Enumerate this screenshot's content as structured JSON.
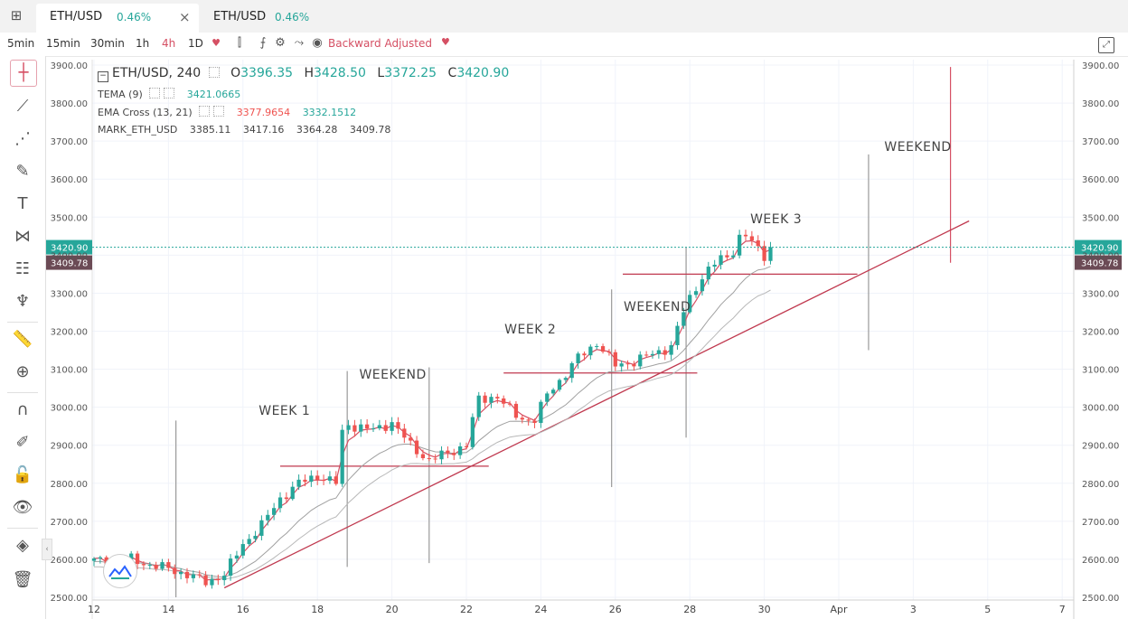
{
  "tabs": [
    {
      "symbol": "ETH/USD",
      "change": "0.46%",
      "close": "×"
    },
    {
      "symbol": "ETH/USD",
      "change": "0.46%"
    }
  ],
  "toolbar": {
    "timeframes": [
      "5min",
      "15min",
      "30min",
      "1h",
      "4h",
      "1D"
    ],
    "active_timeframe": "4h",
    "adjust_label": "Backward Adjusted"
  },
  "legend": {
    "symbol": "ETH/USD, 240",
    "open_label": "O",
    "open": "3396.35",
    "high_label": "H",
    "high": "3428.50",
    "low_label": "L",
    "low": "3372.25",
    "close_label": "C",
    "close": "3420.90",
    "tema_name": "TEMA (9)",
    "tema_value": "3421.0665",
    "ema_name": "EMA Cross (13, 21)",
    "ema_fast": "3377.9654",
    "ema_slow": "3332.1512",
    "mark_name": "MARK_ETH_USD",
    "mark_o": "3385.11",
    "mark_h": "3417.16",
    "mark_l": "3364.28",
    "mark_c": "3409.78"
  },
  "price_labels": {
    "last": "3420.90",
    "mark": "3409.78"
  },
  "colors": {
    "up": "#26a69a",
    "down": "#ef5350",
    "accent": "#d54f63"
  },
  "chart_data": {
    "type": "candlestick",
    "symbol": "ETH/USD",
    "interval": "240",
    "y_ticks": [
      "2500.00",
      "2600.00",
      "2700.00",
      "2800.00",
      "2900.00",
      "3000.00",
      "3100.00",
      "3200.00",
      "3300.00",
      "3400.00",
      "3500.00",
      "3600.00",
      "3700.00",
      "3800.00",
      "3900.00"
    ],
    "ylim": [
      2500,
      3900
    ],
    "x_ticks": [
      "12",
      "14",
      "16",
      "18",
      "20",
      "22",
      "24",
      "26",
      "28",
      "30",
      "Apr",
      "3",
      "5",
      "7"
    ],
    "x_tick_days": [
      12,
      14,
      16,
      18,
      20,
      22,
      24,
      26,
      28,
      30,
      32,
      34,
      36,
      38
    ],
    "xlim": [
      12,
      39
    ],
    "close_keypoints": [
      [
        12.0,
        2595
      ],
      [
        13.0,
        2600
      ],
      [
        13.5,
        2585
      ],
      [
        14.0,
        2575
      ],
      [
        14.5,
        2560
      ],
      [
        15.0,
        2540
      ],
      [
        15.5,
        2560
      ],
      [
        16.0,
        2640
      ],
      [
        16.5,
        2690
      ],
      [
        17.0,
        2760
      ],
      [
        17.5,
        2800
      ],
      [
        18.0,
        2820
      ],
      [
        18.5,
        2800
      ],
      [
        18.7,
        2960
      ],
      [
        19.0,
        2950
      ],
      [
        19.5,
        2940
      ],
      [
        20.0,
        2960
      ],
      [
        20.5,
        2900
      ],
      [
        21.0,
        2860
      ],
      [
        21.5,
        2880
      ],
      [
        22.0,
        2900
      ],
      [
        22.3,
        3020
      ],
      [
        22.8,
        3030
      ],
      [
        23.3,
        2980
      ],
      [
        23.8,
        2960
      ],
      [
        24.2,
        3040
      ],
      [
        24.6,
        3080
      ],
      [
        25.0,
        3130
      ],
      [
        25.5,
        3170
      ],
      [
        26.0,
        3110
      ],
      [
        26.5,
        3120
      ],
      [
        27.0,
        3140
      ],
      [
        27.5,
        3160
      ],
      [
        27.9,
        3270
      ],
      [
        28.3,
        3340
      ],
      [
        28.8,
        3390
      ],
      [
        29.1,
        3400
      ],
      [
        29.4,
        3460
      ],
      [
        29.7,
        3430
      ],
      [
        30.0,
        3400
      ],
      [
        30.2,
        3420.9
      ]
    ],
    "series": [
      {
        "name": "TEMA (9)",
        "color": "#d54f63",
        "last": 3421.0665
      },
      {
        "name": "EMA Cross (13, 21)",
        "color": "#999999",
        "last": [
          3377.9654,
          3332.1512
        ]
      }
    ],
    "annotations": [
      {
        "text": "WEEK 1",
        "day": 17.2,
        "price": 2965
      },
      {
        "text": "WEEKEND",
        "day": 19.9,
        "price": 3060
      },
      {
        "text": "WEEK 2",
        "day": 23.8,
        "price": 3180
      },
      {
        "text": "WEEKEND",
        "day": 27.0,
        "price": 3240
      },
      {
        "text": "WEEK 3",
        "day": 30.4,
        "price": 3470
      },
      {
        "text": "WEEKEND",
        "day": 34.0,
        "price": 3660
      }
    ],
    "trendline": {
      "from": [
        15.5,
        2525
      ],
      "to": [
        35.5,
        3490
      ]
    },
    "support_levels": [
      {
        "price": 2845,
        "from": 17.0,
        "to": 22.6
      },
      {
        "price": 3090,
        "from": 23.0,
        "to": 28.2
      },
      {
        "price": 3350,
        "from": 26.2,
        "to": 32.5
      }
    ],
    "vertical_markers": [
      {
        "day": 14.2,
        "low": 2500,
        "high": 2965,
        "color": "#999999"
      },
      {
        "day": 18.8,
        "low": 2580,
        "high": 3095,
        "color": "#999999"
      },
      {
        "day": 21.0,
        "low": 2590,
        "high": 3105,
        "color": "#999999"
      },
      {
        "day": 25.9,
        "low": 2790,
        "high": 3310,
        "color": "#999999"
      },
      {
        "day": 27.9,
        "low": 2920,
        "high": 3420,
        "color": "#999999"
      },
      {
        "day": 32.8,
        "low": 3150,
        "high": 3665,
        "color": "#999999"
      },
      {
        "day": 35.0,
        "low": 3380,
        "high": 3895,
        "color": "#d54f63"
      }
    ],
    "last_price": 3420.9,
    "mark_price": 3409.78
  }
}
